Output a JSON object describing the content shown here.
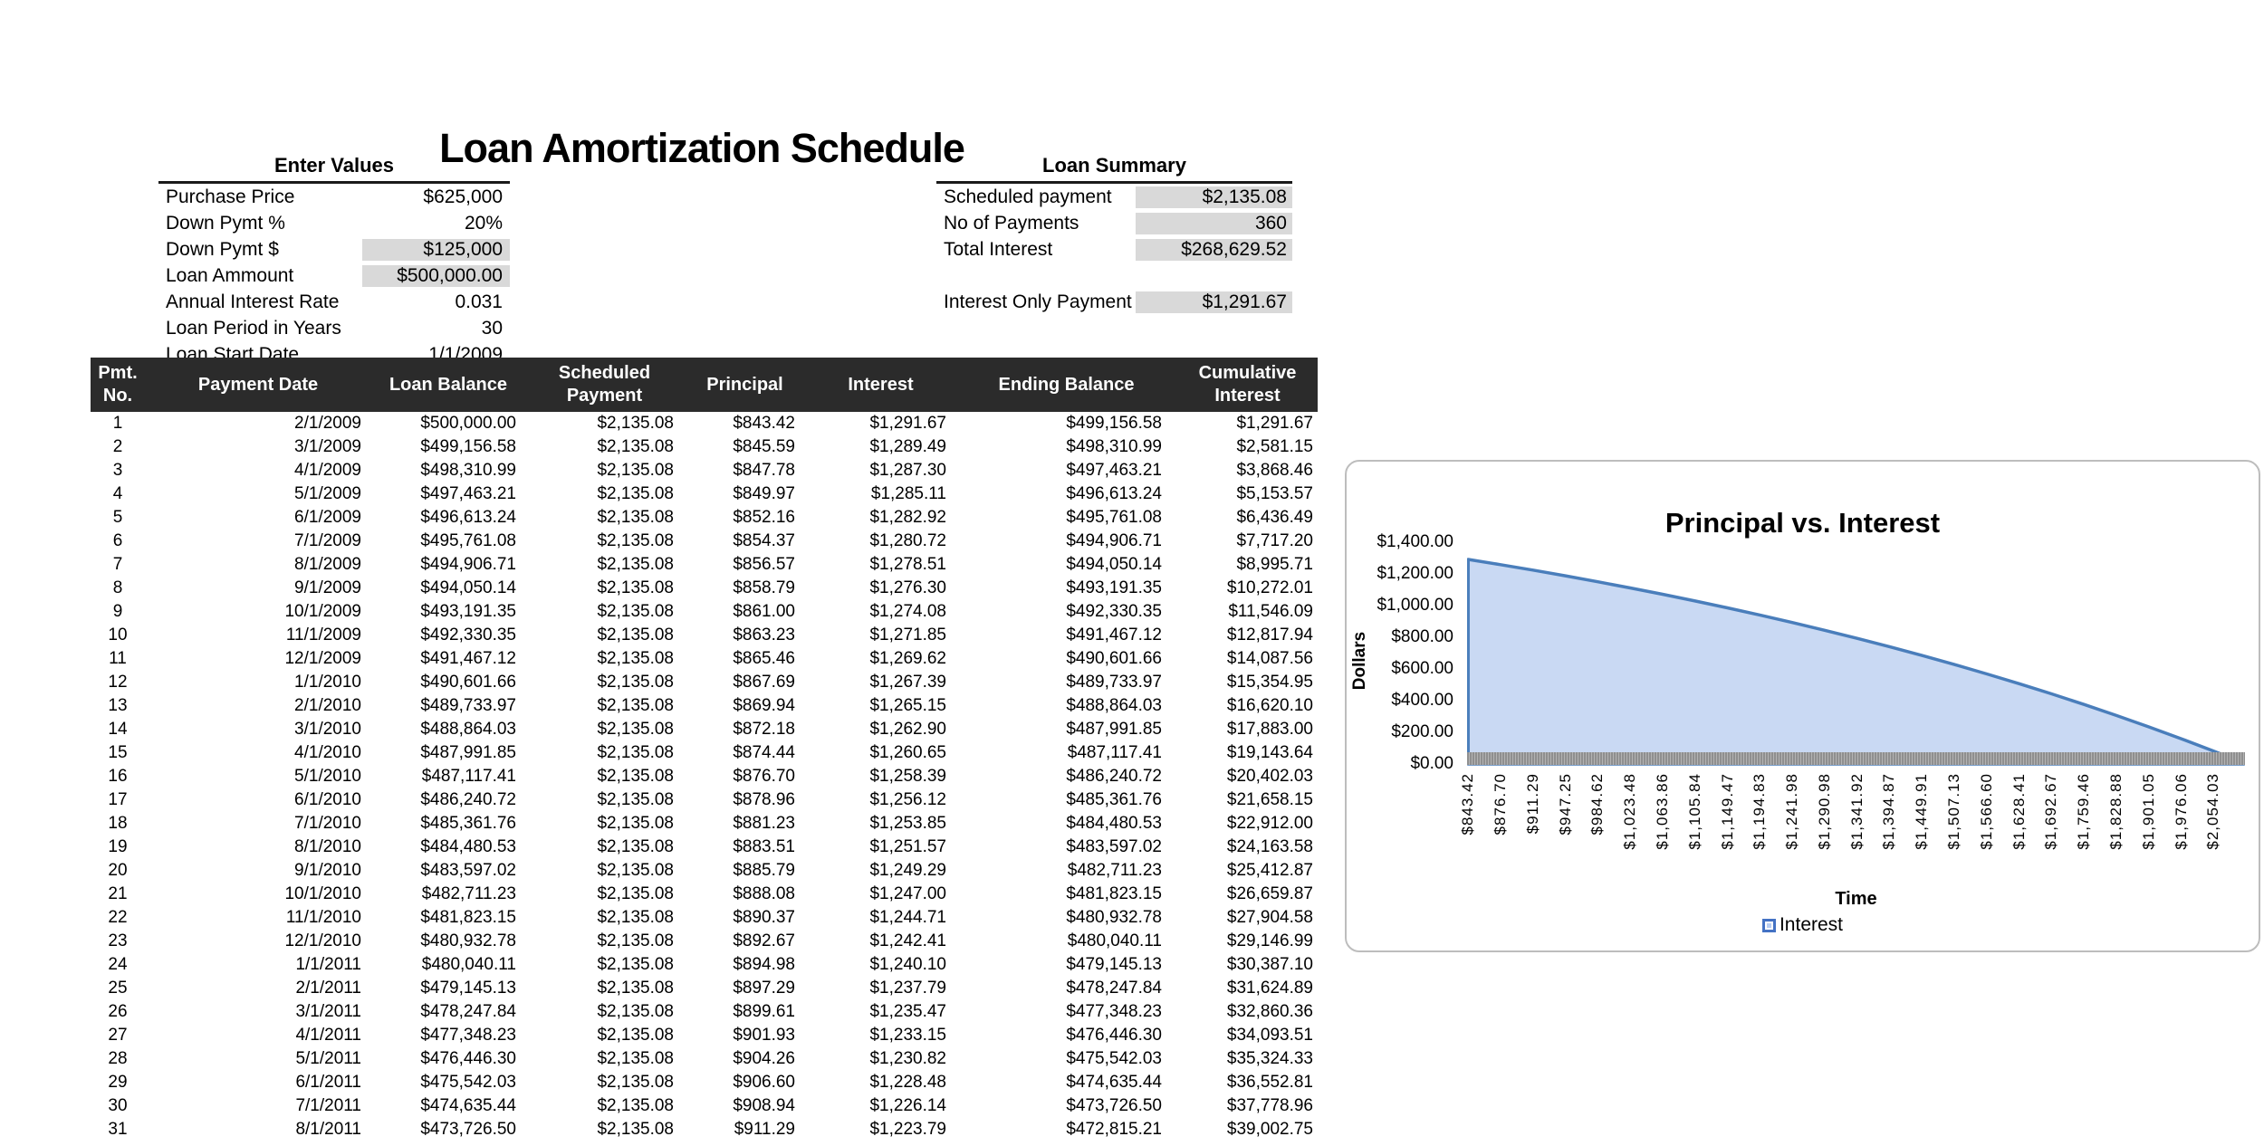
{
  "title": "Loan Amortization Schedule",
  "colors": {
    "table_header_bg": "#2b2b2b",
    "table_header_text": "#ffffff",
    "shaded_cell": "#d9d9d9",
    "chart_line": "#4a7ebb",
    "chart_fill": "#c9d9f3",
    "axis_band": "#9b9b9b",
    "legend_marker_fill": "#b8cdf2",
    "legend_marker_border": "#4472c4"
  },
  "enter_values": {
    "heading": "Enter Values",
    "rows": [
      {
        "label": "Purchase Price",
        "value": "$625,000",
        "shaded": false
      },
      {
        "label": "Down Pymt %",
        "value": "20%",
        "shaded": false
      },
      {
        "label": "Down Pymt $",
        "value": "$125,000",
        "shaded": true
      },
      {
        "label": "Loan Ammount",
        "value": "$500,000.00",
        "shaded": true
      },
      {
        "label": "Annual Interest Rate",
        "value": "0.031",
        "shaded": false
      },
      {
        "label": "Loan Period in Years",
        "value": "30",
        "shaded": false
      },
      {
        "label": "Loan Start Date",
        "value": "1/1/2009",
        "shaded": false
      }
    ]
  },
  "loan_summary": {
    "heading": "Loan Summary",
    "rows": [
      {
        "label": "Scheduled payment",
        "value": "$2,135.08",
        "shaded": true
      },
      {
        "label": "No of Payments",
        "value": "360",
        "shaded": true
      },
      {
        "label": "Total Interest",
        "value": "$268,629.52",
        "shaded": true
      },
      {
        "label": "",
        "value": "",
        "shaded": false,
        "spacer": true
      },
      {
        "label": "Interest Only Payment",
        "value": "$1,291.67",
        "shaded": true
      }
    ]
  },
  "schedule_table": {
    "headers": [
      "Pmt.\nNo.",
      "Payment Date",
      "Loan Balance",
      "Scheduled\nPayment",
      "Principal",
      "Interest",
      "Ending Balance",
      "Cumulative\nInterest"
    ],
    "rows": [
      [
        "1",
        "2/1/2009",
        "$500,000.00",
        "$2,135.08",
        "$843.42",
        "$1,291.67",
        "$499,156.58",
        "$1,291.67"
      ],
      [
        "2",
        "3/1/2009",
        "$499,156.58",
        "$2,135.08",
        "$845.59",
        "$1,289.49",
        "$498,310.99",
        "$2,581.15"
      ],
      [
        "3",
        "4/1/2009",
        "$498,310.99",
        "$2,135.08",
        "$847.78",
        "$1,287.30",
        "$497,463.21",
        "$3,868.46"
      ],
      [
        "4",
        "5/1/2009",
        "$497,463.21",
        "$2,135.08",
        "$849.97",
        "$1,285.11",
        "$496,613.24",
        "$5,153.57"
      ],
      [
        "5",
        "6/1/2009",
        "$496,613.24",
        "$2,135.08",
        "$852.16",
        "$1,282.92",
        "$495,761.08",
        "$6,436.49"
      ],
      [
        "6",
        "7/1/2009",
        "$495,761.08",
        "$2,135.08",
        "$854.37",
        "$1,280.72",
        "$494,906.71",
        "$7,717.20"
      ],
      [
        "7",
        "8/1/2009",
        "$494,906.71",
        "$2,135.08",
        "$856.57",
        "$1,278.51",
        "$494,050.14",
        "$8,995.71"
      ],
      [
        "8",
        "9/1/2009",
        "$494,050.14",
        "$2,135.08",
        "$858.79",
        "$1,276.30",
        "$493,191.35",
        "$10,272.01"
      ],
      [
        "9",
        "10/1/2009",
        "$493,191.35",
        "$2,135.08",
        "$861.00",
        "$1,274.08",
        "$492,330.35",
        "$11,546.09"
      ],
      [
        "10",
        "11/1/2009",
        "$492,330.35",
        "$2,135.08",
        "$863.23",
        "$1,271.85",
        "$491,467.12",
        "$12,817.94"
      ],
      [
        "11",
        "12/1/2009",
        "$491,467.12",
        "$2,135.08",
        "$865.46",
        "$1,269.62",
        "$490,601.66",
        "$14,087.56"
      ],
      [
        "12",
        "1/1/2010",
        "$490,601.66",
        "$2,135.08",
        "$867.69",
        "$1,267.39",
        "$489,733.97",
        "$15,354.95"
      ],
      [
        "13",
        "2/1/2010",
        "$489,733.97",
        "$2,135.08",
        "$869.94",
        "$1,265.15",
        "$488,864.03",
        "$16,620.10"
      ],
      [
        "14",
        "3/1/2010",
        "$488,864.03",
        "$2,135.08",
        "$872.18",
        "$1,262.90",
        "$487,991.85",
        "$17,883.00"
      ],
      [
        "15",
        "4/1/2010",
        "$487,991.85",
        "$2,135.08",
        "$874.44",
        "$1,260.65",
        "$487,117.41",
        "$19,143.64"
      ],
      [
        "16",
        "5/1/2010",
        "$487,117.41",
        "$2,135.08",
        "$876.70",
        "$1,258.39",
        "$486,240.72",
        "$20,402.03"
      ],
      [
        "17",
        "6/1/2010",
        "$486,240.72",
        "$2,135.08",
        "$878.96",
        "$1,256.12",
        "$485,361.76",
        "$21,658.15"
      ],
      [
        "18",
        "7/1/2010",
        "$485,361.76",
        "$2,135.08",
        "$881.23",
        "$1,253.85",
        "$484,480.53",
        "$22,912.00"
      ],
      [
        "19",
        "8/1/2010",
        "$484,480.53",
        "$2,135.08",
        "$883.51",
        "$1,251.57",
        "$483,597.02",
        "$24,163.58"
      ],
      [
        "20",
        "9/1/2010",
        "$483,597.02",
        "$2,135.08",
        "$885.79",
        "$1,249.29",
        "$482,711.23",
        "$25,412.87"
      ],
      [
        "21",
        "10/1/2010",
        "$482,711.23",
        "$2,135.08",
        "$888.08",
        "$1,247.00",
        "$481,823.15",
        "$26,659.87"
      ],
      [
        "22",
        "11/1/2010",
        "$481,823.15",
        "$2,135.08",
        "$890.37",
        "$1,244.71",
        "$480,932.78",
        "$27,904.58"
      ],
      [
        "23",
        "12/1/2010",
        "$480,932.78",
        "$2,135.08",
        "$892.67",
        "$1,242.41",
        "$480,040.11",
        "$29,146.99"
      ],
      [
        "24",
        "1/1/2011",
        "$480,040.11",
        "$2,135.08",
        "$894.98",
        "$1,240.10",
        "$479,145.13",
        "$30,387.10"
      ],
      [
        "25",
        "2/1/2011",
        "$479,145.13",
        "$2,135.08",
        "$897.29",
        "$1,237.79",
        "$478,247.84",
        "$31,624.89"
      ],
      [
        "26",
        "3/1/2011",
        "$478,247.84",
        "$2,135.08",
        "$899.61",
        "$1,235.47",
        "$477,348.23",
        "$32,860.36"
      ],
      [
        "27",
        "4/1/2011",
        "$477,348.23",
        "$2,135.08",
        "$901.93",
        "$1,233.15",
        "$476,446.30",
        "$34,093.51"
      ],
      [
        "28",
        "5/1/2011",
        "$476,446.30",
        "$2,135.08",
        "$904.26",
        "$1,230.82",
        "$475,542.03",
        "$35,324.33"
      ],
      [
        "29",
        "6/1/2011",
        "$475,542.03",
        "$2,135.08",
        "$906.60",
        "$1,228.48",
        "$474,635.44",
        "$36,552.81"
      ],
      [
        "30",
        "7/1/2011",
        "$474,635.44",
        "$2,135.08",
        "$908.94",
        "$1,226.14",
        "$473,726.50",
        "$37,778.96"
      ],
      [
        "31",
        "8/1/2011",
        "$473,726.50",
        "$2,135.08",
        "$911.29",
        "$1,223.79",
        "$472,815.21",
        "$39,002.75"
      ]
    ]
  },
  "chart_data": {
    "type": "area",
    "title": "Principal vs. Interest",
    "xlabel": "Time",
    "ylabel": "Dollars",
    "grid": false,
    "legend_position": "bottom",
    "legend_label": "Interest",
    "ylim": [
      0,
      1400
    ],
    "y_ticks": [
      "$0.00",
      "$200.00",
      "$400.00",
      "$600.00",
      "$800.00",
      "$1,000.00",
      "$1,200.00",
      "$1,400.00"
    ],
    "x_categories_total": 360,
    "x_tick_payments": [
      1,
      16,
      31,
      46,
      61,
      76,
      91,
      106,
      121,
      136,
      151,
      166,
      181,
      196,
      211,
      226,
      241,
      256,
      271,
      286,
      301,
      316,
      331,
      346
    ],
    "x_tick_labels": [
      "$843.42",
      "$876.70",
      "$911.29",
      "$947.25",
      "$984.62",
      "$1,023.48",
      "$1,063.86",
      "$1,105.84",
      "$1,149.47",
      "$1,194.83",
      "$1,241.98",
      "$1,290.98",
      "$1,341.92",
      "$1,394.87",
      "$1,449.91",
      "$1,507.13",
      "$1,566.60",
      "$1,628.41",
      "$1,692.67",
      "$1,759.46",
      "$1,828.88",
      "$1,901.05",
      "$1,976.06",
      "$2,054.03"
    ],
    "series": [
      {
        "name": "Interest",
        "payments": [
          1,
          16,
          31,
          46,
          61,
          76,
          91,
          106,
          121,
          136,
          151,
          166,
          181,
          196,
          211,
          226,
          241,
          256,
          271,
          286,
          301,
          316,
          331,
          346,
          360
        ],
        "values": [
          1291.67,
          1258.39,
          1223.79,
          1187.83,
          1150.46,
          1111.62,
          1071.24,
          1029.27,
          985.64,
          940.3,
          893.17,
          844.18,
          793.25,
          740.31,
          685.28,
          628.08,
          568.63,
          506.83,
          442.6,
          375.82,
          306.42,
          234.28,
          159.29,
          81.35,
          5.58
        ]
      }
    ]
  }
}
